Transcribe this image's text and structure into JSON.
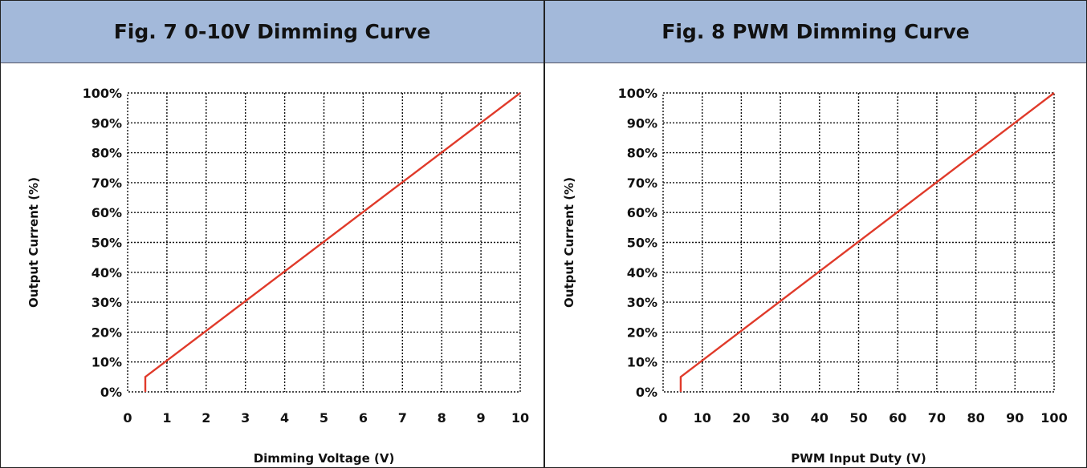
{
  "chart_data": [
    {
      "type": "line",
      "title": "Fig. 7 0-10V Dimming Curve",
      "xlabel": "Dimming Voltage (V)",
      "ylabel": "Output Current (%)",
      "xlim": [
        0,
        10
      ],
      "ylim": [
        0,
        100
      ],
      "x_ticks": [
        "0",
        "1",
        "2",
        "3",
        "4",
        "5",
        "6",
        "7",
        "8",
        "9",
        "10"
      ],
      "y_ticks": [
        "0%",
        "10%",
        "20%",
        "30%",
        "40%",
        "50%",
        "60%",
        "70%",
        "80%",
        "90%",
        "100%"
      ],
      "grid": true,
      "series": [
        {
          "color": "#e03a2a",
          "x": [
            0.45,
            0.45,
            10
          ],
          "y": [
            0,
            5,
            100
          ]
        }
      ]
    },
    {
      "type": "line",
      "title": "Fig. 8 PWM Dimming Curve",
      "xlabel": "PWM Input Duty (V)",
      "ylabel": "Output Current (%)",
      "xlim": [
        0,
        100
      ],
      "ylim": [
        0,
        100
      ],
      "x_ticks": [
        "0",
        "10",
        "20",
        "30",
        "40",
        "50",
        "60",
        "70",
        "80",
        "90",
        "100"
      ],
      "y_ticks": [
        "0%",
        "10%",
        "20%",
        "30%",
        "40%",
        "50%",
        "60%",
        "70%",
        "80%",
        "90%",
        "100%"
      ],
      "grid": true,
      "series": [
        {
          "color": "#e03a2a",
          "x": [
            4.5,
            4.5,
            100
          ],
          "y": [
            0,
            5,
            100
          ]
        }
      ]
    }
  ]
}
